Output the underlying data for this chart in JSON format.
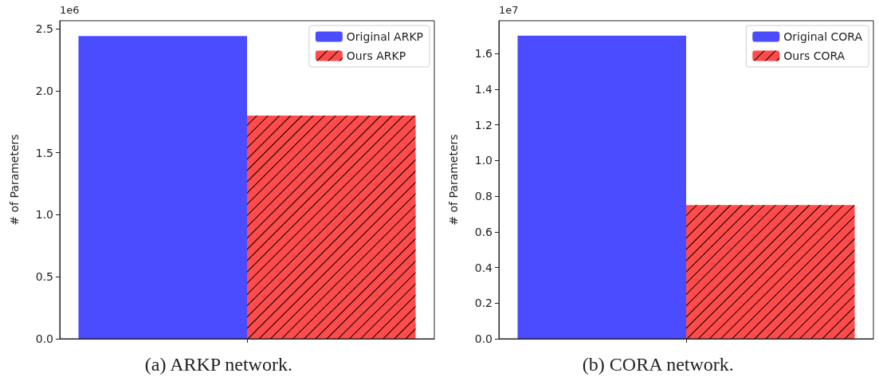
{
  "chart_data": [
    {
      "type": "bar",
      "categories": [
        null
      ],
      "ylabel": "# of Parameters",
      "ylim": [
        0,
        2.564
      ],
      "yticks": [
        {
          "value": 0,
          "label": "0.0"
        },
        {
          "value": 0.5,
          "label": "0.5"
        },
        {
          "value": 1,
          "label": "1.0"
        },
        {
          "value": 1.5,
          "label": "1.5"
        },
        {
          "value": 2,
          "label": "2.0"
        },
        {
          "value": 2.5,
          "label": "2.5"
        }
      ],
      "legend": "top right",
      "grid": false,
      "annotations": [
        "1e6",
        "(a) ARKP network."
      ],
      "series": [
        {
          "name": "Original ARKP",
          "color": "#4b4bff",
          "values": [
            2.44
          ]
        },
        {
          "name": "Ours ARKP",
          "color": "#ff4b4b",
          "values": [
            1.8
          ]
        }
      ]
    },
    {
      "type": "bar",
      "categories": [
        null
      ],
      "ylabel": "# of Parameters",
      "ylim": [
        0,
        1.784
      ],
      "yticks": [
        {
          "value": 0,
          "label": "0.0"
        },
        {
          "value": 0.2,
          "label": "0.2"
        },
        {
          "value": 0.4,
          "label": "0.4"
        },
        {
          "value": 0.6,
          "label": "0.6"
        },
        {
          "value": 0.8,
          "label": "0.8"
        },
        {
          "value": 1,
          "label": "1.0"
        },
        {
          "value": 1.2,
          "label": "1.2"
        },
        {
          "value": 1.4,
          "label": "1.4"
        },
        {
          "value": 1.6,
          "label": "1.6"
        }
      ],
      "legend": "top right",
      "grid": false,
      "annotations": [
        "1e7",
        "(b) CORA network."
      ],
      "series": [
        {
          "name": "Original CORA",
          "color": "#4b4bff",
          "values": [
            1.7
          ]
        },
        {
          "name": "Ours CORA",
          "color": "#ff4b4b",
          "values": [
            0.75
          ]
        }
      ]
    }
  ]
}
